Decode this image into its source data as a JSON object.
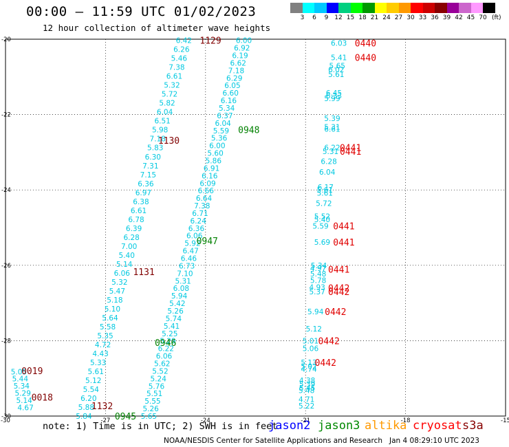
{
  "header": {
    "title": "00:00 – 11:59 UTC 01/02/2023",
    "subtitle": "12 hour collection of altimeter wave heights"
  },
  "color_scale": {
    "labels": [
      "3",
      "6",
      "9",
      "12",
      "15",
      "18",
      "21",
      "24",
      "27",
      "30",
      "33",
      "36",
      "39",
      "42",
      "45",
      "70"
    ],
    "unit": "(ft)",
    "colors": [
      "#808080",
      "#00ffff",
      "#00c8ff",
      "#0000ff",
      "#00d080",
      "#00ff00",
      "#009900",
      "#ffff00",
      "#ffcc00",
      "#ff9900",
      "#ff0000",
      "#cc0000",
      "#880000",
      "#990099",
      "#cc66cc",
      "#ff99ff",
      "#000000"
    ]
  },
  "axes": {
    "x_ticks": [
      "-30",
      "-27",
      "-24",
      "-21",
      "-18",
      "-15"
    ],
    "y_ticks": [
      "-20",
      "-22",
      "-24",
      "-26",
      "-28",
      "-30"
    ]
  },
  "colors": {
    "wave": "#00c8e0",
    "time_red": "#e00000",
    "time_dark": "#800000",
    "time_green": "#008000"
  },
  "track_times": [
    {
      "t": "1129",
      "lon": -23.85,
      "lat": -20.03,
      "c": "time_dark"
    },
    {
      "t": "1130",
      "lon": -25.1,
      "lat": -22.68,
      "c": "time_dark"
    },
    {
      "t": "1131",
      "lon": -25.85,
      "lat": -26.17,
      "c": "time_dark"
    },
    {
      "t": "1132",
      "lon": -27.1,
      "lat": -29.73,
      "c": "time_dark"
    },
    {
      "t": "0019",
      "lon": -29.2,
      "lat": -28.8,
      "c": "time_dark"
    },
    {
      "t": "0018",
      "lon": -28.9,
      "lat": -29.5,
      "c": "time_dark"
    },
    {
      "t": "0948",
      "lon": -22.7,
      "lat": -22.4,
      "c": "time_green"
    },
    {
      "t": "0947",
      "lon": -23.95,
      "lat": -25.35,
      "c": "time_green"
    },
    {
      "t": "0946",
      "lon": -25.2,
      "lat": -28.05,
      "c": "time_green"
    },
    {
      "t": "0945",
      "lon": -26.4,
      "lat": -30.0,
      "c": "time_green"
    },
    {
      "t": "0440",
      "lon": -19.2,
      "lat": -20.1,
      "c": "time_red"
    },
    {
      "t": "0440",
      "lon": -19.2,
      "lat": -20.48,
      "c": "time_red"
    },
    {
      "t": "0441",
      "lon": -19.65,
      "lat": -22.87,
      "c": "time_red"
    },
    {
      "t": "0441",
      "lon": -19.65,
      "lat": -22.97,
      "c": "time_red"
    },
    {
      "t": "0441",
      "lon": -19.85,
      "lat": -24.95,
      "c": "time_red"
    },
    {
      "t": "0441",
      "lon": -19.85,
      "lat": -25.38,
      "c": "time_red"
    },
    {
      "t": "0441",
      "lon": -20.0,
      "lat": -26.1,
      "c": "time_red"
    },
    {
      "t": "0442",
      "lon": -20.0,
      "lat": -26.6,
      "c": "time_red"
    },
    {
      "t": "0442",
      "lon": -20.0,
      "lat": -26.7,
      "c": "time_red"
    },
    {
      "t": "0442",
      "lon": -20.1,
      "lat": -27.23,
      "c": "time_red"
    },
    {
      "t": "0442",
      "lon": -20.3,
      "lat": -28.0,
      "c": "time_red"
    },
    {
      "t": "0442",
      "lon": -20.4,
      "lat": -28.58,
      "c": "time_red"
    }
  ],
  "tracks": [
    {
      "name": "track_1129",
      "start": [
        -24.65,
        -20.03
      ],
      "end": [
        -27.65,
        -30.0
      ],
      "values": [
        "6.42",
        "6.26",
        "5.46",
        "7.38",
        "6.61",
        "5.32",
        "5.72",
        "5.82",
        "6.04",
        "6.51",
        "5.98",
        "7.18",
        "5.83",
        "6.30",
        "7.31",
        "7.15",
        "6.36",
        "6.97",
        "6.38",
        "6.61",
        "6.78",
        "6.39",
        "6.28",
        "7.00",
        "5.40",
        "5.14",
        "6.06",
        "5.32",
        "5.47",
        "5.18",
        "5.10",
        "5.64",
        "5.58",
        "5.35",
        "4.72",
        "4.43",
        "5.33",
        "5.61",
        "5.12",
        "5.54",
        "6.20",
        "5.88",
        "5.84"
      ]
    },
    {
      "name": "track_0948",
      "start": [
        -22.85,
        -20.03
      ],
      "end": [
        -25.7,
        -30.0
      ],
      "values": [
        "6.00",
        "6.92",
        "6.19",
        "6.62",
        "7.18",
        "6.29",
        "6.05",
        "6.60",
        "6.16",
        "5.34",
        "6.37",
        "6.04",
        "5.59",
        "5.36",
        "6.00",
        "5.60",
        "5.86",
        "6.91",
        "6.16",
        "6.09",
        "6.66",
        "6.64",
        "7.38",
        "6.71",
        "6.24",
        "6.36",
        "6.06",
        "5.92",
        "6.47",
        "6.46",
        "6.73",
        "7.10",
        "5.31",
        "6.08",
        "5.94",
        "5.42",
        "5.26",
        "5.74",
        "5.41",
        "5.25",
        "5.29",
        "6.22",
        "6.06",
        "5.62",
        "5.52",
        "5.24",
        "5.76",
        "5.51",
        "5.55",
        "5.26",
        "5.65"
      ]
    },
    {
      "name": "track_0019",
      "start": [
        -29.6,
        -28.82
      ],
      "end": [
        -29.4,
        -29.77
      ],
      "values": [
        "5.05",
        "5.44",
        "5.34",
        "5.29",
        "5.14",
        "4.67"
      ]
    }
  ],
  "east_values": [
    {
      "v": "6.03",
      "lon": -20.0,
      "lat": -20.1
    },
    {
      "v": "5.41",
      "lon": -20.0,
      "lat": -20.48
    },
    {
      "v": "5.65",
      "lon": -20.05,
      "lat": -20.7
    },
    {
      "v": "6.02",
      "lon": -20.08,
      "lat": -20.8
    },
    {
      "v": "5.61",
      "lon": -20.08,
      "lat": -20.93
    },
    {
      "v": "6.45",
      "lon": -20.15,
      "lat": -21.42
    },
    {
      "v": "6.33",
      "lon": -20.15,
      "lat": -21.5
    },
    {
      "v": "5.99",
      "lon": -20.2,
      "lat": -21.57
    },
    {
      "v": "5.39",
      "lon": -20.2,
      "lat": -22.1
    },
    {
      "v": "5.31",
      "lon": -20.2,
      "lat": -22.33
    },
    {
      "v": "6.61",
      "lon": -20.2,
      "lat": -22.38
    },
    {
      "v": "6.22",
      "lon": -20.2,
      "lat": -22.87
    },
    {
      "v": "5.31",
      "lon": -20.25,
      "lat": -22.97
    },
    {
      "v": "6.28",
      "lon": -20.3,
      "lat": -23.24
    },
    {
      "v": "6.04",
      "lon": -20.35,
      "lat": -23.52
    },
    {
      "v": "6.17",
      "lon": -20.4,
      "lat": -23.92
    },
    {
      "v": "5.61",
      "lon": -20.42,
      "lat": -24.0
    },
    {
      "v": "5.61",
      "lon": -20.42,
      "lat": -24.08
    },
    {
      "v": "5.72",
      "lon": -20.45,
      "lat": -24.35
    },
    {
      "v": "5.52",
      "lon": -20.5,
      "lat": -24.7
    },
    {
      "v": "5.40",
      "lon": -20.5,
      "lat": -24.78
    },
    {
      "v": "5.59",
      "lon": -20.55,
      "lat": -24.95
    },
    {
      "v": "5.69",
      "lon": -20.5,
      "lat": -25.38
    },
    {
      "v": "5.34",
      "lon": -20.6,
      "lat": -26.0
    },
    {
      "v": "4.97",
      "lon": -20.62,
      "lat": -26.08
    },
    {
      "v": "5.48",
      "lon": -20.62,
      "lat": -26.22
    },
    {
      "v": "5.78",
      "lon": -20.62,
      "lat": -26.4
    },
    {
      "v": "4.93",
      "lon": -20.65,
      "lat": -26.58
    },
    {
      "v": "5.37",
      "lon": -20.65,
      "lat": -26.7
    },
    {
      "v": "5.94",
      "lon": -20.7,
      "lat": -27.23
    },
    {
      "v": "5.12",
      "lon": -20.75,
      "lat": -27.68
    },
    {
      "v": "5.01",
      "lon": -20.85,
      "lat": -28.0
    },
    {
      "v": "5.06",
      "lon": -20.85,
      "lat": -28.2
    },
    {
      "v": "5.13",
      "lon": -20.9,
      "lat": -28.58
    },
    {
      "v": "5.02",
      "lon": -20.9,
      "lat": -28.68
    },
    {
      "v": "4.74",
      "lon": -20.9,
      "lat": -28.75
    },
    {
      "v": "4.38",
      "lon": -20.95,
      "lat": -29.05
    },
    {
      "v": "5.39",
      "lon": -20.95,
      "lat": -29.15
    },
    {
      "v": "5.45",
      "lon": -20.95,
      "lat": -29.25
    },
    {
      "v": "5.48",
      "lon": -20.97,
      "lat": -29.32
    },
    {
      "v": "4.71",
      "lon": -20.97,
      "lat": -29.55
    },
    {
      "v": "5.22",
      "lon": -20.97,
      "lat": -29.73
    }
  ],
  "footer": {
    "note": "note: 1) Time is in UTC; 2) SWH is in feet",
    "satellites": [
      {
        "name": "jason2",
        "color": "#0000ff"
      },
      {
        "name": "jason3",
        "color": "#008800"
      },
      {
        "name": "altika",
        "color": "#ff9900"
      },
      {
        "name": "cryosat",
        "color": "#ff0000"
      },
      {
        "name": "s3a",
        "color": "#880000"
      }
    ],
    "credit": "NOAA/NESDIS Center for Satellite Applications and Research",
    "generated": "Jan  4 08:29:10 UTC 2023"
  }
}
